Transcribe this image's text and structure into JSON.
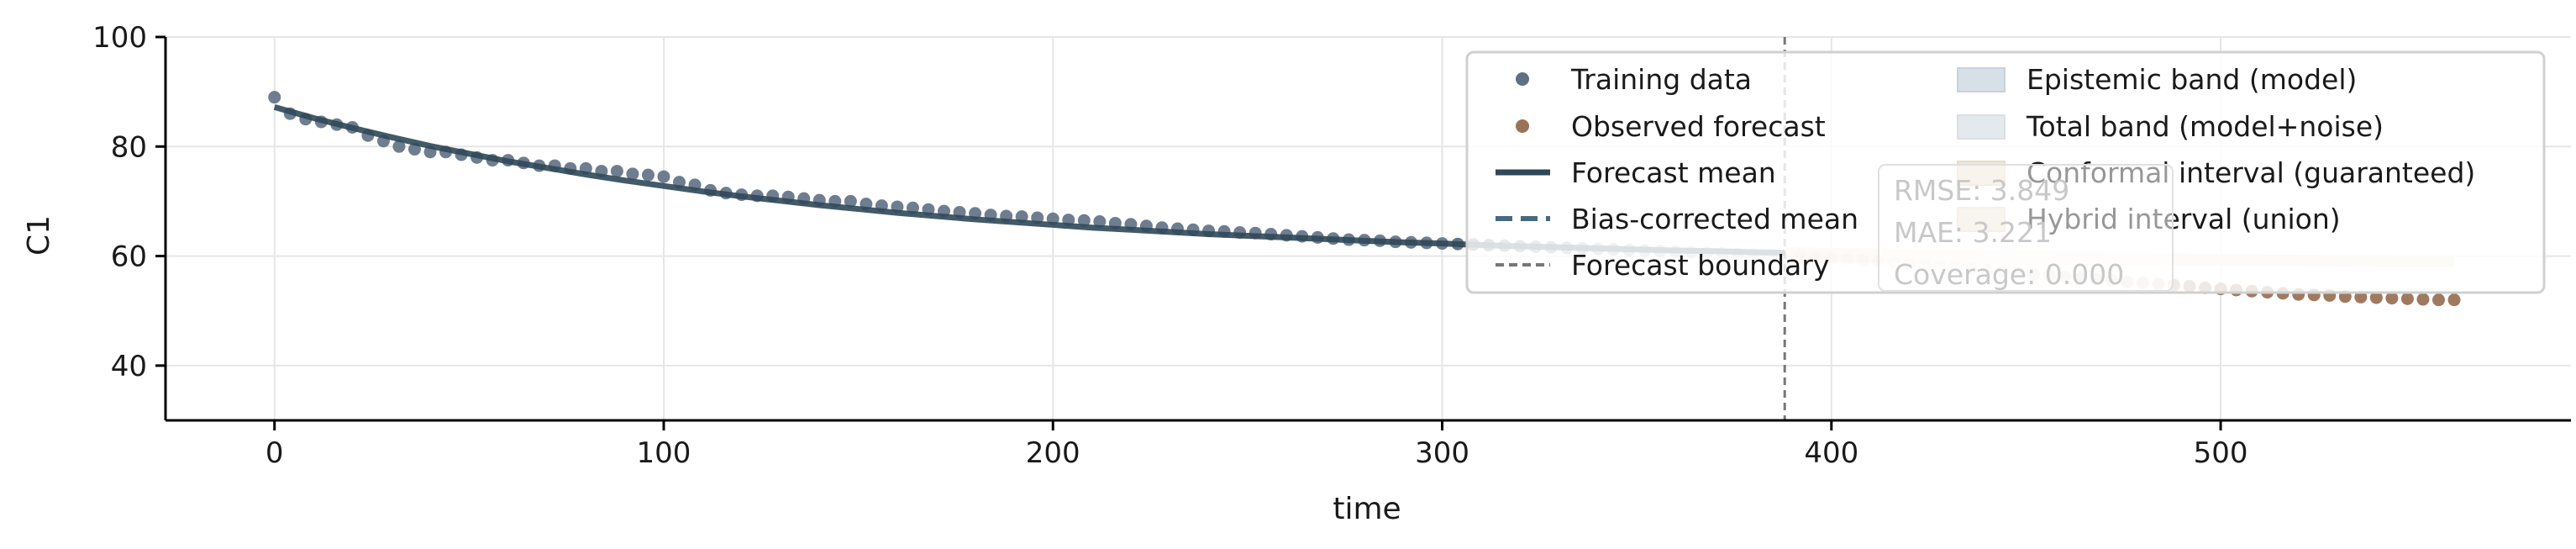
{
  "chart_data": {
    "type": "scatter",
    "xlabel": "time",
    "ylabel": "C1",
    "xlim": [
      -28,
      590
    ],
    "ylim": [
      30,
      100
    ],
    "x_ticks": [
      0,
      100,
      200,
      300,
      400,
      500
    ],
    "y_ticks": [
      40,
      60,
      80,
      100
    ],
    "grid": true,
    "forecast_boundary": 388,
    "legend_position": "top-right",
    "legend": [
      {
        "label": "Training data",
        "kind": "dot",
        "color": "#5f6f84"
      },
      {
        "label": "Observed forecast",
        "kind": "dot",
        "color": "#9b7357"
      },
      {
        "label": "Forecast mean",
        "kind": "line",
        "color": "#2f4858"
      },
      {
        "label": "Bias-corrected mean",
        "kind": "dash",
        "color": "#466a80"
      },
      {
        "label": "Forecast boundary",
        "kind": "dash-gray",
        "color": "#777777"
      },
      {
        "label": "Epistemic band (model)",
        "kind": "patch",
        "color": "#c7d3dd"
      },
      {
        "label": "Total band (model+noise)",
        "kind": "patch",
        "color": "#d9dfe5"
      },
      {
        "label": "Conformal interval (guaranteed)",
        "kind": "patch",
        "color": "#e8dcc6"
      },
      {
        "label": "Hybrid interval (union)",
        "kind": "patch",
        "color": "#eadfcb"
      }
    ],
    "metrics": [
      "RMSE: 3.849",
      "MAE: 3.221",
      "Coverage: 0.000"
    ],
    "series": [
      {
        "name": "Training data",
        "color": "#5f6f84",
        "x": [
          0,
          4,
          8,
          12,
          16,
          20,
          24,
          28,
          32,
          36,
          40,
          44,
          48,
          52,
          56,
          60,
          64,
          68,
          72,
          76,
          80,
          84,
          88,
          92,
          96,
          100,
          104,
          108,
          112,
          116,
          120,
          124,
          128,
          132,
          136,
          140,
          144,
          148,
          152,
          156,
          160,
          164,
          168,
          172,
          176,
          180,
          184,
          188,
          192,
          196,
          200,
          204,
          208,
          212,
          216,
          220,
          224,
          228,
          232,
          236,
          240,
          244,
          248,
          252,
          256,
          260,
          264,
          268,
          272,
          276,
          280,
          284,
          288,
          292,
          296,
          300,
          304,
          308,
          312,
          316,
          320,
          324,
          328,
          332,
          336,
          340,
          344,
          348,
          352,
          356,
          360,
          364,
          368,
          372,
          376,
          380,
          384
        ],
        "y": [
          89.0,
          86.0,
          85.0,
          84.5,
          84.0,
          83.5,
          82.0,
          81.0,
          80.0,
          79.5,
          79.0,
          79.0,
          78.5,
          78.0,
          77.5,
          77.5,
          77.0,
          76.5,
          76.5,
          76.0,
          76.0,
          75.5,
          75.5,
          75.0,
          74.8,
          74.5,
          73.5,
          73.0,
          72.0,
          71.5,
          71.2,
          71.0,
          71.0,
          70.8,
          70.5,
          70.2,
          70.0,
          70.0,
          69.5,
          69.2,
          69.0,
          68.8,
          68.5,
          68.2,
          68.0,
          67.8,
          67.5,
          67.3,
          67.2,
          67.0,
          66.8,
          66.6,
          66.5,
          66.3,
          66.0,
          65.8,
          65.5,
          65.2,
          65.0,
          64.8,
          64.6,
          64.5,
          64.3,
          64.2,
          64.0,
          63.8,
          63.6,
          63.4,
          63.2,
          63.0,
          62.9,
          62.8,
          62.6,
          62.5,
          62.4,
          62.3,
          62.2,
          62.1,
          62.0,
          61.9,
          61.8,
          61.7,
          61.6,
          61.5,
          61.4,
          61.3,
          61.2,
          61.1,
          61.0,
          60.9,
          60.8,
          60.7,
          60.6,
          60.5,
          60.4,
          60.3,
          60.2
        ]
      },
      {
        "name": "Observed forecast",
        "color": "#9b7357",
        "x": [
          392,
          396,
          400,
          404,
          408,
          412,
          416,
          420,
          424,
          428,
          432,
          436,
          440,
          444,
          448,
          452,
          456,
          460,
          464,
          468,
          472,
          476,
          480,
          484,
          488,
          492,
          496,
          500,
          504,
          508,
          512,
          516,
          520,
          524,
          528,
          532,
          536,
          540,
          544,
          548,
          552,
          556,
          560
        ],
        "y": [
          60.0,
          59.8,
          59.6,
          59.4,
          59.2,
          59.0,
          58.8,
          58.6,
          58.4,
          58.1,
          57.9,
          57.7,
          57.4,
          57.2,
          57.0,
          56.7,
          56.5,
          56.2,
          56.0,
          55.8,
          55.6,
          55.3,
          55.1,
          54.9,
          54.7,
          54.5,
          54.2,
          54.0,
          53.8,
          53.6,
          53.4,
          53.2,
          53.0,
          52.9,
          52.8,
          52.6,
          52.5,
          52.4,
          52.3,
          52.2,
          52.1,
          52.0,
          52.0
        ]
      },
      {
        "name": "Forecast mean",
        "color": "#2f4858",
        "x": [
          0,
          10,
          20,
          30,
          40,
          50,
          60,
          70,
          80,
          90,
          100,
          110,
          120,
          130,
          140,
          150,
          160,
          170,
          180,
          190,
          200,
          210,
          220,
          230,
          240,
          250,
          260,
          270,
          280,
          290,
          300,
          310,
          320,
          330,
          340,
          350,
          360,
          370,
          380,
          388
        ],
        "y": [
          87.2,
          85.2,
          83.4,
          81.7,
          80.1,
          78.7,
          77.3,
          76.1,
          74.9,
          73.8,
          72.8,
          71.8,
          70.9,
          70.1,
          69.3,
          68.6,
          67.9,
          67.3,
          66.7,
          66.2,
          65.7,
          65.2,
          64.8,
          64.4,
          64.0,
          63.7,
          63.4,
          63.1,
          62.8,
          62.5,
          62.3,
          62.0,
          61.8,
          61.6,
          61.4,
          61.2,
          61.0,
          60.9,
          60.7,
          60.6
        ]
      },
      {
        "name": "Hybrid interval (union)",
        "color": "#eadfcb",
        "x": [
          388,
          420,
          450,
          480,
          510,
          540,
          560
        ],
        "y_low": [
          58.8,
          58.6,
          58.4,
          58.3,
          58.2,
          58.0,
          58.0
        ],
        "y_high": [
          61.6,
          61.3,
          61.0,
          60.6,
          60.3,
          60.0,
          59.8
        ]
      }
    ]
  }
}
